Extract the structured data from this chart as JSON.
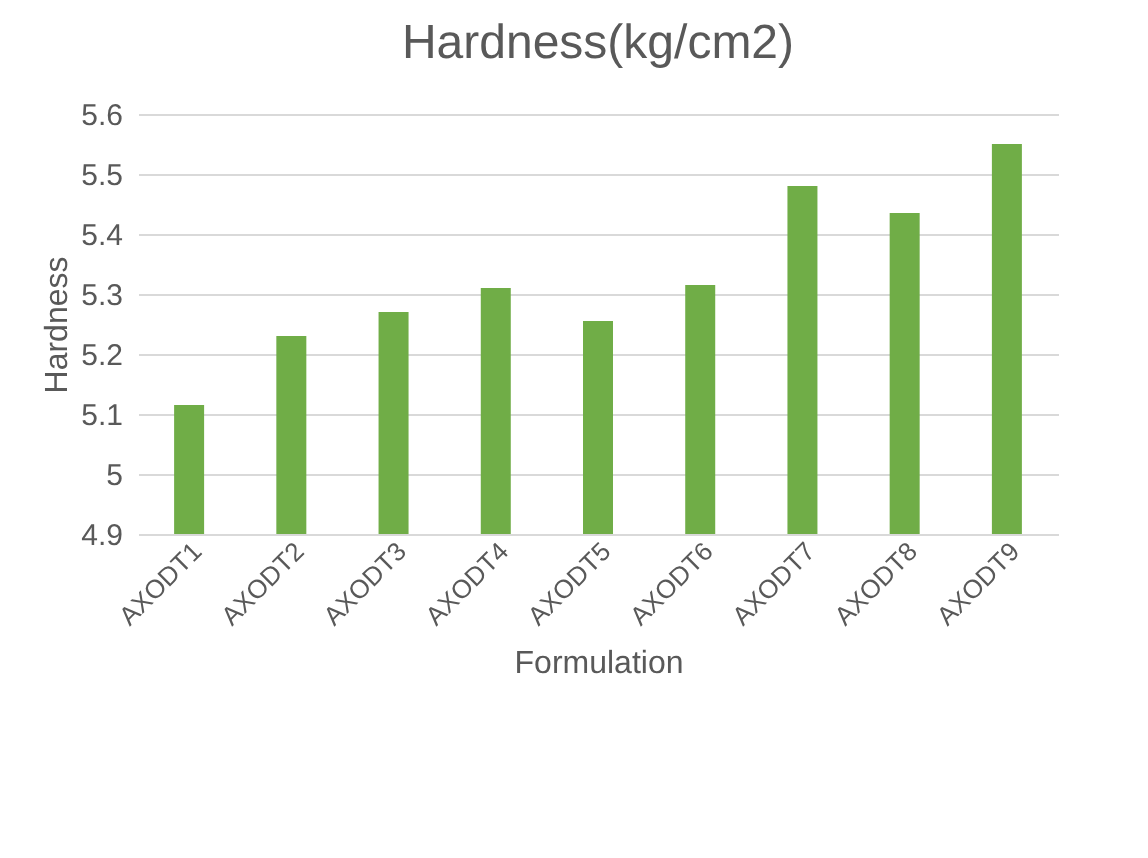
{
  "chart_data": {
    "type": "bar",
    "title": "Hardness(kg/cm2)",
    "xlabel": "Formulation",
    "ylabel": "Hardness",
    "categories": [
      "AXODT1",
      "AXODT2",
      "AXODT3",
      "AXODT4",
      "AXODT5",
      "AXODT6",
      "AXODT7",
      "AXODT8",
      "AXODT9"
    ],
    "values": [
      5.115,
      5.23,
      5.27,
      5.31,
      5.255,
      5.315,
      5.48,
      5.435,
      5.55
    ],
    "color": "#70ad47",
    "ylim": [
      4.9,
      5.6
    ],
    "yticks": [
      4.9,
      5,
      5.1,
      5.2,
      5.3,
      5.4,
      5.5,
      5.6
    ],
    "grid": "y"
  }
}
